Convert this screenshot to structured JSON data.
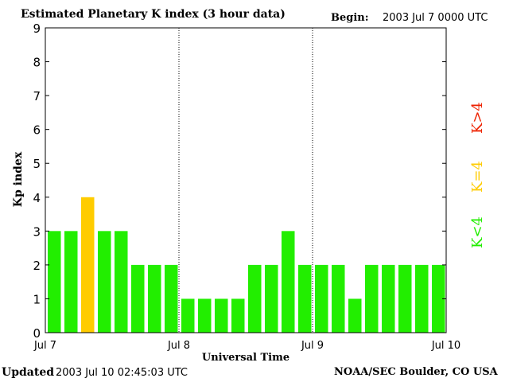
{
  "header": {
    "title": "Estimated Planetary K index (3 hour data)",
    "begin_label": "Begin:",
    "begin_value": "2003 Jul 7 0000 UTC"
  },
  "footer": {
    "updated_label": "Updated",
    "updated_value": "2003 Jul 10 02:45:03 UTC",
    "org": "NOAA/SEC Boulder, CO USA"
  },
  "legend": [
    {
      "label": "K<4",
      "color": "#22ee00"
    },
    {
      "label": "K=4",
      "color": "#ffcc00"
    },
    {
      "label": "K>4",
      "color": "#ee2200"
    }
  ],
  "chart_data": {
    "type": "bar",
    "title": "Estimated Planetary K index (3 hour data)",
    "xlabel": "Universal Time",
    "ylabel": "Kp index",
    "ylim": [
      0,
      9
    ],
    "yticks": [
      0,
      1,
      2,
      3,
      4,
      5,
      6,
      7,
      8,
      9
    ],
    "xticks": [
      "Jul 7",
      "Jul 8",
      "Jul 9",
      "Jul 10"
    ],
    "interval": "3 hour",
    "grid": "vertical dotted lines at day boundaries",
    "values": [
      3,
      3,
      4,
      3,
      3,
      2,
      2,
      2,
      1,
      1,
      1,
      1,
      2,
      2,
      3,
      2,
      2,
      2,
      1,
      2,
      2,
      2,
      2,
      2
    ]
  }
}
